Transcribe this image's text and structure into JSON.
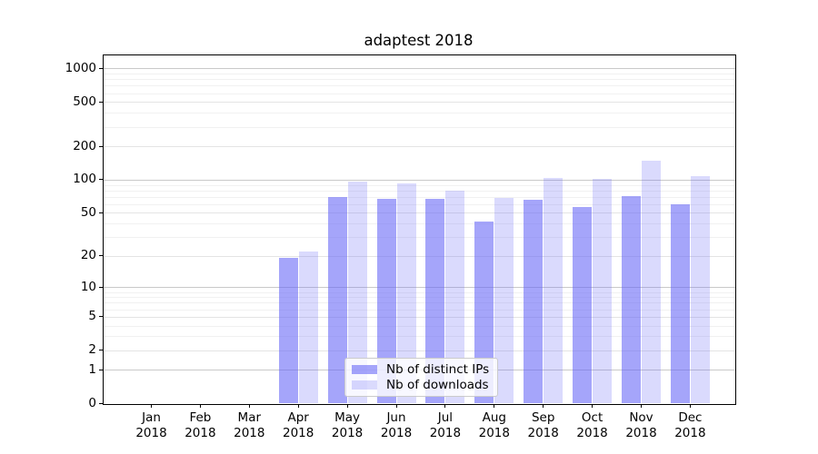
{
  "title": "adaptest 2018",
  "chart_data": {
    "type": "bar",
    "title": "adaptest 2018",
    "categories": [
      "Jan 2018",
      "Feb 2018",
      "Mar 2018",
      "Apr 2018",
      "May 2018",
      "Jun 2018",
      "Jul 2018",
      "Aug 2018",
      "Sep 2018",
      "Oct 2018",
      "Nov 2018",
      "Dec 2018"
    ],
    "series": [
      {
        "name": "Nb of distinct IPs",
        "color": "rgba(100,100,246,0.58)",
        "values": [
          0,
          0,
          0,
          19,
          70,
          67,
          67,
          42,
          66,
          57,
          71,
          60
        ]
      },
      {
        "name": "Nb of downloads",
        "color": "rgba(100,100,246,0.24)",
        "values": [
          0,
          0,
          0,
          22,
          97,
          93,
          80,
          68,
          104,
          101,
          149,
          108
        ]
      }
    ],
    "yscale": "log1p",
    "y_ticks": [
      0,
      1,
      2,
      5,
      10,
      20,
      50,
      100,
      200,
      500,
      1000
    ],
    "y_decade_ticks": [
      1,
      10,
      100,
      1000
    ],
    "ylim": [
      0,
      1250
    ],
    "xlabel": "",
    "ylabel": "",
    "grid": true,
    "legend_position": "inside-bottom-center",
    "colors": {
      "grid_decade": "#c9c9c9",
      "grid_major": "#e4e4e4",
      "grid_minor": "#f1f1f1",
      "spine": "#000000",
      "background": "#ffffff"
    }
  }
}
